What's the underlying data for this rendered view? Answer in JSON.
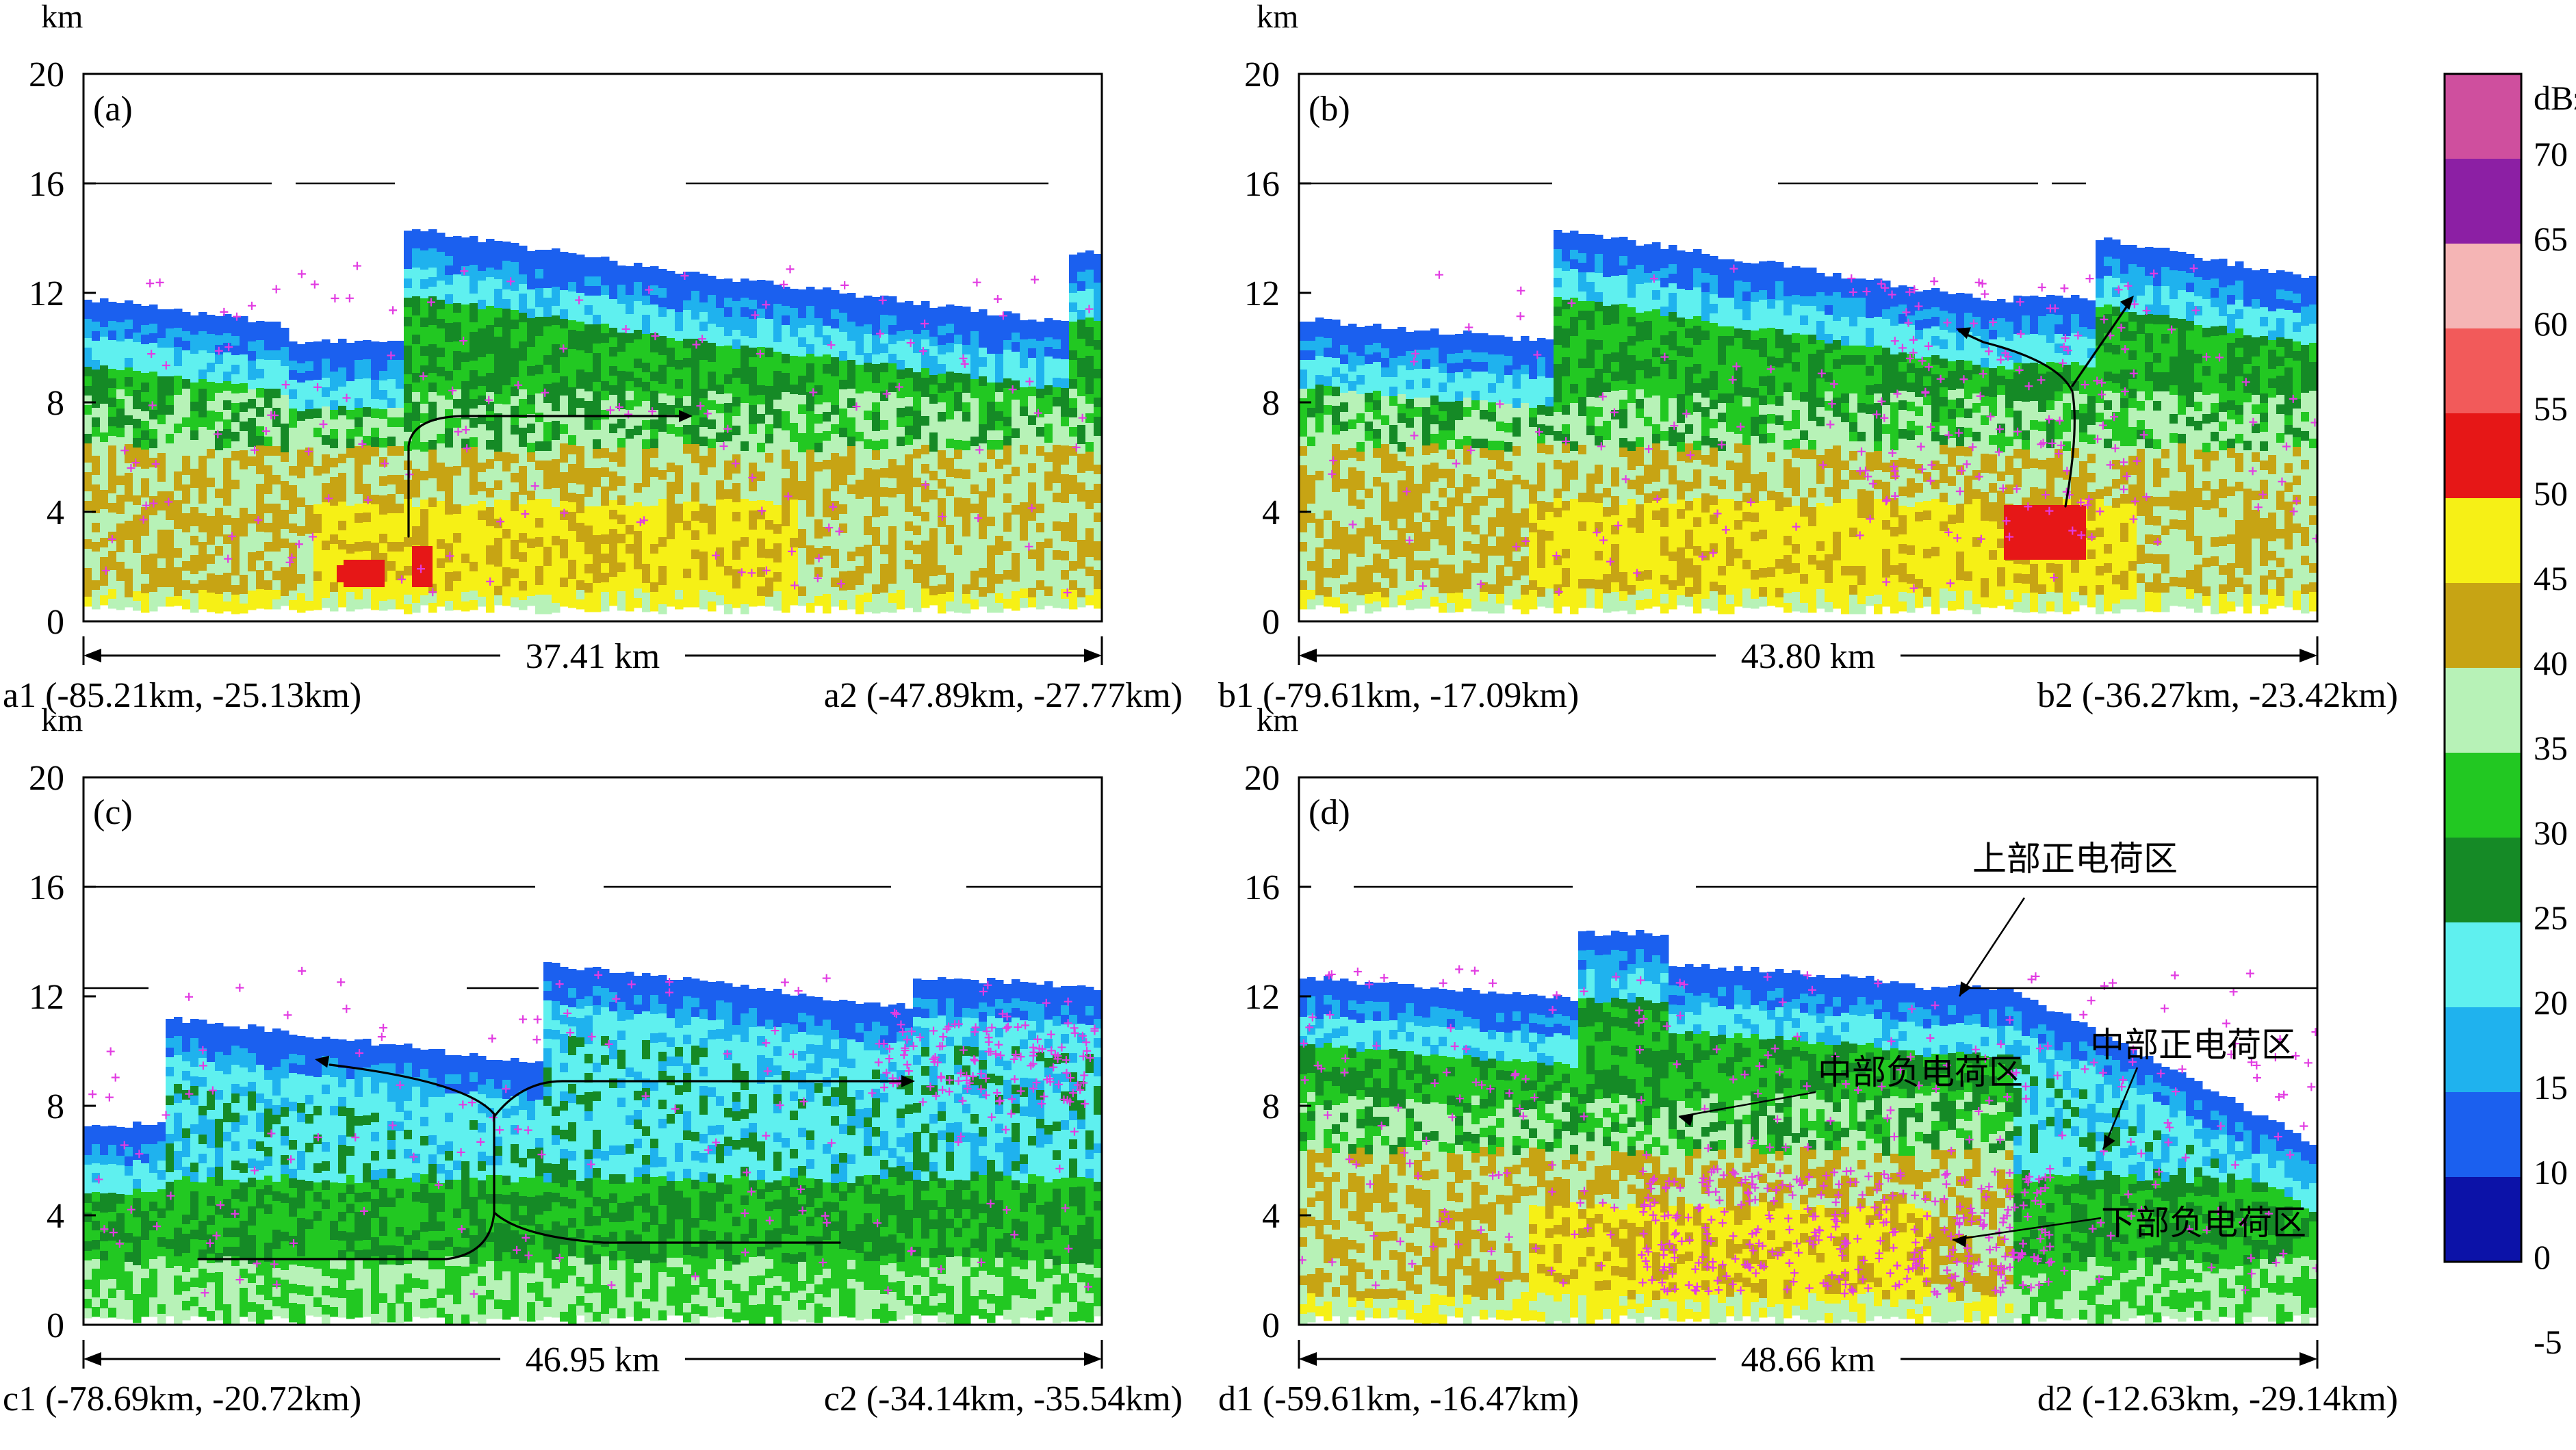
{
  "figure": {
    "colorbar": {
      "unit": "dBz",
      "ticks": [
        "70",
        "65",
        "60",
        "55",
        "50",
        "45",
        "40",
        "35",
        "30",
        "25",
        "20",
        "15",
        "10",
        "0",
        "-5"
      ],
      "colors": [
        "#cf4f9e",
        "#8c1fa4",
        "#f5b5b5",
        "#f25a5a",
        "#e61717",
        "#f6f016",
        "#c7a414",
        "#b7f2b7",
        "#22c822",
        "#158a26",
        "#5ff0ef",
        "#1fb2ee",
        "#1b60ef",
        "#0c12a8"
      ]
    },
    "panels": [
      {
        "id": "a",
        "label": "(a)",
        "dist_label": "37.41 km",
        "start_label": "a1 (-85.21km, -25.13km)",
        "end_label": "a2 (-47.89km, -27.77km)",
        "height_unit": "km",
        "yticks": [
          "0",
          "4",
          "8",
          "12",
          "16",
          "20"
        ],
        "annotations": []
      },
      {
        "id": "b",
        "label": "(b)",
        "dist_label": "43.80 km",
        "start_label": "b1 (-79.61km, -17.09km)",
        "end_label": "b2 (-36.27km, -23.42km)",
        "height_unit": "km",
        "yticks": [
          "0",
          "4",
          "8",
          "12",
          "16",
          "20"
        ],
        "annotations": []
      },
      {
        "id": "c",
        "label": "(c)",
        "dist_label": "46.95 km",
        "start_label": "c1 (-78.69km, -20.72km)",
        "end_label": "c2 (-34.14km, -35.54km)",
        "height_unit": "km",
        "yticks": [
          "0",
          "4",
          "8",
          "12",
          "16",
          "20"
        ],
        "annotations": []
      },
      {
        "id": "d",
        "label": "(d)",
        "dist_label": "48.66 km",
        "start_label": "d1 (-59.61km, -16.47km)",
        "end_label": "d2 (-12.63km, -29.14km)",
        "height_unit": "km",
        "yticks": [
          "0",
          "4",
          "8",
          "12",
          "16",
          "20"
        ],
        "annotations": [
          "上部正电荷区",
          "中部负电荷区",
          "中部正电荷区",
          "下部负电荷区"
        ]
      }
    ]
  },
  "chart_data": [
    {
      "type": "heatmap",
      "title": "(a)",
      "xlabel": "37.41 km",
      "ylabel": "km",
      "x_range_km": [
        0,
        37.41
      ],
      "ylim": [
        0,
        20
      ],
      "yticks": [
        0,
        4,
        8,
        12,
        16,
        20
      ],
      "z_unit": "dBz",
      "z_range": [
        -5,
        75
      ],
      "start_point": {
        "label": "a1",
        "x_km": -85.21,
        "y_km": -25.13
      },
      "end_point": {
        "label": "a2",
        "x_km": -47.89,
        "y_km": -27.77
      },
      "max_echo_top_km": 15.5
    },
    {
      "type": "heatmap",
      "title": "(b)",
      "xlabel": "43.80 km",
      "ylabel": "km",
      "x_range_km": [
        0,
        43.8
      ],
      "ylim": [
        0,
        20
      ],
      "yticks": [
        0,
        4,
        8,
        12,
        16,
        20
      ],
      "z_unit": "dBz",
      "z_range": [
        -5,
        75
      ],
      "start_point": {
        "label": "b1",
        "x_km": -79.61,
        "y_km": -17.09
      },
      "end_point": {
        "label": "b2",
        "x_km": -36.27,
        "y_km": -23.42
      },
      "max_echo_top_km": 14.5
    },
    {
      "type": "heatmap",
      "title": "(c)",
      "xlabel": "46.95 km",
      "ylabel": "km",
      "x_range_km": [
        0,
        46.95
      ],
      "ylim": [
        0,
        20
      ],
      "yticks": [
        0,
        4,
        8,
        12,
        16,
        20
      ],
      "z_unit": "dBz",
      "z_range": [
        -5,
        75
      ],
      "start_point": {
        "label": "c1",
        "x_km": -78.69,
        "y_km": -20.72
      },
      "end_point": {
        "label": "c2",
        "x_km": -34.14,
        "y_km": -35.54
      },
      "max_echo_top_km": 13.3
    },
    {
      "type": "heatmap",
      "title": "(d)",
      "xlabel": "48.66 km",
      "ylabel": "km",
      "x_range_km": [
        0,
        48.66
      ],
      "ylim": [
        0,
        20
      ],
      "yticks": [
        0,
        4,
        8,
        12,
        16,
        20
      ],
      "z_unit": "dBz",
      "z_range": [
        -5,
        75
      ],
      "start_point": {
        "label": "d1",
        "x_km": -59.61,
        "y_km": -16.47
      },
      "end_point": {
        "label": "d2",
        "x_km": -12.63,
        "y_km": -29.14
      },
      "max_echo_top_km": 14.5,
      "charge_regions": [
        "上部正电荷区",
        "中部负电荷区",
        "中部正电荷区",
        "下部负电荷区"
      ]
    }
  ]
}
